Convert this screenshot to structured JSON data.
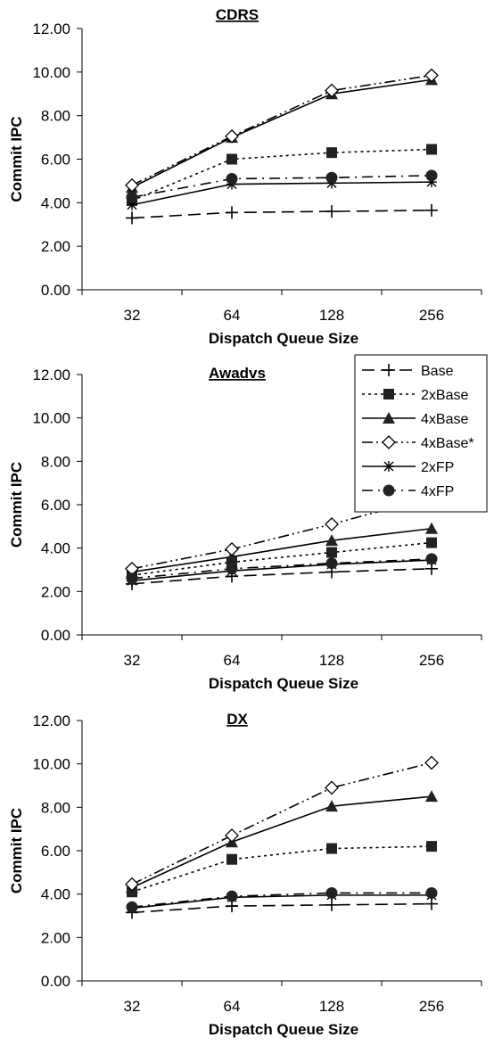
{
  "chart_data": [
    {
      "type": "line",
      "title": "CDRS",
      "xlabel": "Dispatch Queue Size",
      "ylabel": "Commit IPC",
      "categories": [
        "32",
        "64",
        "128",
        "256"
      ],
      "ylim": [
        0,
        12
      ],
      "yticks": [
        "0.00",
        "2.00",
        "4.00",
        "6.00",
        "8.00",
        "10.00",
        "12.00"
      ],
      "grid": false,
      "legend": "none",
      "series": [
        {
          "name": "Base",
          "values": [
            3.3,
            3.55,
            3.6,
            3.65
          ]
        },
        {
          "name": "2xBase",
          "values": [
            4.1,
            6.0,
            6.3,
            6.45
          ]
        },
        {
          "name": "4xBase",
          "values": [
            4.7,
            7.0,
            9.0,
            9.65
          ]
        },
        {
          "name": "4xBase*",
          "values": [
            4.8,
            7.05,
            9.15,
            9.85
          ]
        },
        {
          "name": "2xFP",
          "values": [
            3.9,
            4.85,
            4.9,
            4.95
          ]
        },
        {
          "name": "4xFP",
          "values": [
            4.25,
            5.1,
            5.15,
            5.25
          ]
        }
      ]
    },
    {
      "type": "line",
      "title": "Awadvs",
      "xlabel": "Dispatch Queue Size",
      "ylabel": "Commit IPC",
      "categories": [
        "32",
        "64",
        "128",
        "256"
      ],
      "ylim": [
        0,
        12
      ],
      "yticks": [
        "0.00",
        "2.00",
        "4.00",
        "6.00",
        "8.00",
        "10.00",
        "12.00"
      ],
      "grid": false,
      "legend": "top-right",
      "series": [
        {
          "name": "Base",
          "values": [
            2.35,
            2.7,
            2.9,
            3.05
          ]
        },
        {
          "name": "2xBase",
          "values": [
            2.75,
            3.35,
            3.8,
            4.25
          ]
        },
        {
          "name": "4xBase",
          "values": [
            2.9,
            3.6,
            4.35,
            4.9
          ]
        },
        {
          "name": "4xBase*",
          "values": [
            3.05,
            3.95,
            5.1,
            6.35
          ]
        },
        {
          "name": "2xFP",
          "values": [
            2.5,
            2.95,
            3.25,
            3.45
          ]
        },
        {
          "name": "4xFP",
          "values": [
            2.6,
            3.05,
            3.3,
            3.5
          ]
        }
      ]
    },
    {
      "type": "line",
      "title": "DX",
      "xlabel": "Dispatch Queue Size",
      "ylabel": "Commit IPC",
      "categories": [
        "32",
        "64",
        "128",
        "256"
      ],
      "ylim": [
        0,
        12
      ],
      "yticks": [
        "0.00",
        "2.00",
        "4.00",
        "6.00",
        "8.00",
        "10.00",
        "12.00"
      ],
      "grid": false,
      "legend": "none",
      "series": [
        {
          "name": "Base",
          "values": [
            3.15,
            3.45,
            3.5,
            3.55
          ]
        },
        {
          "name": "2xBase",
          "values": [
            4.1,
            5.6,
            6.1,
            6.2
          ]
        },
        {
          "name": "4xBase",
          "values": [
            4.3,
            6.4,
            8.05,
            8.5
          ]
        },
        {
          "name": "4xBase*",
          "values": [
            4.45,
            6.7,
            8.9,
            10.05
          ]
        },
        {
          "name": "2xFP",
          "values": [
            3.35,
            3.85,
            3.95,
            3.95
          ]
        },
        {
          "name": "4xFP",
          "values": [
            3.4,
            3.9,
            4.05,
            4.05
          ]
        }
      ]
    }
  ],
  "legend": [
    "Base",
    "2xBase",
    "4xBase",
    "4xBase*",
    "2xFP",
    "4xFP"
  ]
}
